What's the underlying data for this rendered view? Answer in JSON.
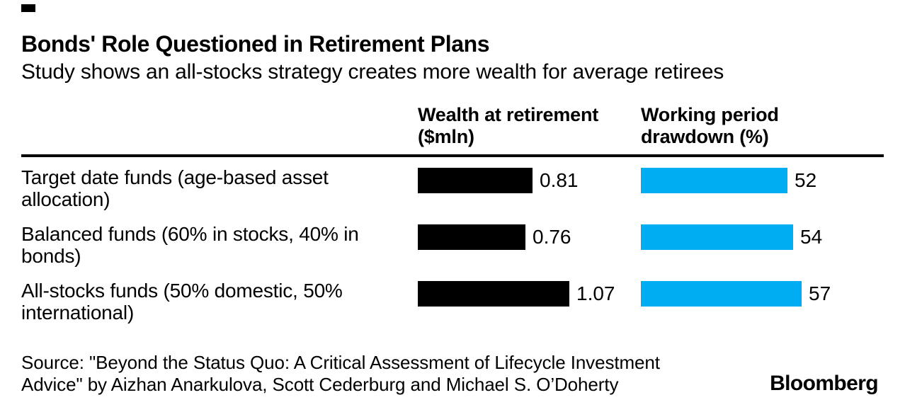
{
  "header": {
    "title": "Bonds' Role Questioned in Retirement Plans",
    "subtitle": "Study shows an all-stocks strategy creates more wealth for average retirees"
  },
  "columns": {
    "wealth_header": "Wealth at retirement\n($mln)",
    "drawdown_header": "Working period\ndrawdown (%)"
  },
  "chart_data": {
    "type": "bar",
    "orientation": "horizontal",
    "title": "Bonds' Role Questioned in Retirement Plans",
    "subtitle": "Study shows an all-stocks strategy creates more wealth for average retirees",
    "categories": [
      "Target date funds (age-based asset allocation)",
      "Balanced funds (60% in stocks, 40% in bonds)",
      "All-stocks funds (50% domestic, 50% international)"
    ],
    "series": [
      {
        "name": "Wealth at retirement ($mln)",
        "color": "#000000",
        "values": [
          0.81,
          0.76,
          1.07
        ],
        "axis_max": 1.07
      },
      {
        "name": "Working period drawdown (%)",
        "color": "#00acf2",
        "values": [
          52,
          54,
          57
        ],
        "axis_max": 57
      }
    ],
    "value_labels": true,
    "grid": false,
    "legend_position": "column-headers"
  },
  "footer": {
    "source": "Source: \"Beyond the Status Quo: A Critical Assessment of Lifecycle Investment\nAdvice\" by Aizhan Anarkulova, Scott Cederburg and Michael S. O’Doherty",
    "logo": "Bloomberg"
  },
  "colors": {
    "bar_black": "#000000",
    "bar_blue": "#00acf2",
    "background": "#ffffff",
    "text": "#000000"
  }
}
